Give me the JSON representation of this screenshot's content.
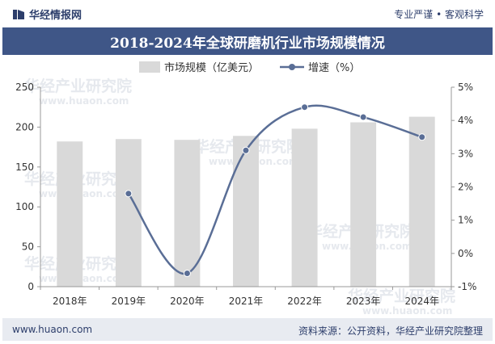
{
  "header": {
    "brand": "华经情报网",
    "tagline": "专业严谨 • 客观科学"
  },
  "colors": {
    "title_bg": "#3f5687",
    "bar": "#d9d9d9",
    "line": "#5a6e96"
  },
  "watermark": {
    "cn": "华经产业研究院",
    "url": "www.huaon.com"
  },
  "chart_data": {
    "type": "bar",
    "title": "2018-2024年全球研磨机行业市场规模情况",
    "categories": [
      "2018年",
      "2019年",
      "2020年",
      "2021年",
      "2022年",
      "2023年",
      "2024年"
    ],
    "series": [
      {
        "name": "市场规模（亿美元）",
        "type": "bar",
        "axis": "left",
        "values": [
          182,
          185,
          184,
          189,
          198,
          206,
          213
        ]
      },
      {
        "name": "增速（%）",
        "type": "line",
        "axis": "right",
        "values": [
          null,
          1.8,
          -0.6,
          3.1,
          4.4,
          4.1,
          3.5
        ]
      }
    ],
    "ylim_left": [
      0,
      250
    ],
    "yticks_left": [
      "0",
      "50",
      "100",
      "150",
      "200",
      "250"
    ],
    "ylim_right": [
      -1,
      5
    ],
    "yticks_right": [
      "-1%",
      "0%",
      "1%",
      "2%",
      "3%",
      "4%",
      "5%"
    ],
    "legend_position": "top-center"
  },
  "footer": {
    "url": "www.huaon.com",
    "source": "资料来源：公开资料，华经产业研究院整理"
  }
}
